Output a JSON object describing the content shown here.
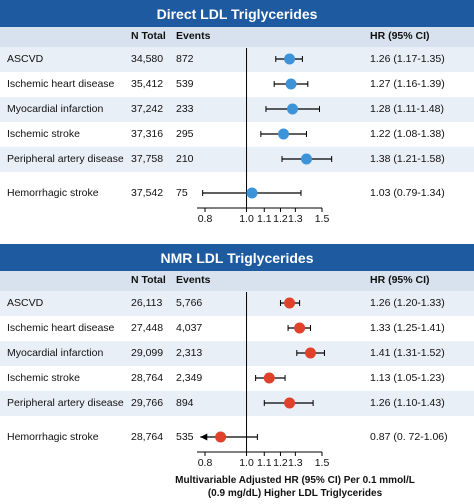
{
  "colors": {
    "header_bg": "#1e5aa0",
    "colheader_bg": "#d7e2ee",
    "row_shade": "#e9eff6",
    "direct_marker": "#3d93d8",
    "nmr_marker": "#e0412b"
  },
  "panels": [
    {
      "title": "Direct LDL Triglycerides",
      "col_headers": {
        "n": "N Total",
        "events": "Events",
        "hr": "HR (95% CI)"
      },
      "rows": [
        {
          "label": "ASCVD",
          "n": "34,580",
          "events": "872",
          "hr_text": "1.26 (1.17-1.35)"
        },
        {
          "label": "Ischemic heart disease",
          "n": "35,412",
          "events": "539",
          "hr_text": "1.27 (1.16-1.39)"
        },
        {
          "label": "Myocardial infarction",
          "n": "37,242",
          "events": "233",
          "hr_text": "1.28 (1.11-1.48)"
        },
        {
          "label": "Ischemic stroke",
          "n": "37,316",
          "events": "295",
          "hr_text": "1.22 (1.08-1.38)"
        },
        {
          "label": "Peripheral artery disease",
          "n": "37,758",
          "events": "210",
          "hr_text": "1.38 (1.21-1.58)"
        },
        {
          "label": "Hemorrhagic stroke",
          "n": "37,542",
          "events": "75",
          "hr_text": "1.03 (0.79-1.34)"
        }
      ]
    },
    {
      "title": "NMR LDL Triglycerides",
      "col_headers": {
        "n": "N Total",
        "events": "Events",
        "hr": "HR (95% CI)"
      },
      "rows": [
        {
          "label": "ASCVD",
          "n": "26,113",
          "events": "5,766",
          "hr_text": "1.26 (1.20-1.33)"
        },
        {
          "label": "Ischemic heart disease",
          "n": "27,448",
          "events": "4,037",
          "hr_text": "1.33 (1.25-1.41)"
        },
        {
          "label": "Myocardial infarction",
          "n": "29,099",
          "events": "2,313",
          "hr_text": "1.41 (1.31-1.52)"
        },
        {
          "label": "Ischemic stroke",
          "n": "28,764",
          "events": "2,349",
          "hr_text": "1.13 (1.05-1.23)"
        },
        {
          "label": "Peripheral artery disease",
          "n": "29,766",
          "events": "894",
          "hr_text": "1.26 (1.10-1.43)"
        },
        {
          "label": "Hemorrhagic stroke",
          "n": "28,764",
          "events": "535",
          "hr_text": "0.87 (0. 72-1.06)"
        }
      ]
    }
  ],
  "x_axis": {
    "label_line1": "Multivariable Adjusted HR (95% CI) Per 0.1 mmol/L",
    "label_line2": "(0.9 mg/dL) Higher LDL Triglycerides",
    "ticks": [
      "0.8",
      "1.0",
      "1.1",
      "1.2",
      "1.3",
      "1.5"
    ]
  },
  "chart_data": [
    {
      "type": "forest",
      "title": "Direct LDL Triglycerides",
      "xlabel": "Multivariable Adjusted HR (95% CI) Per 0.1 mmol/L (0.9 mg/dL) Higher LDL Triglycerides",
      "x_scale": "log",
      "reference_line": 1.0,
      "x_ticks": [
        0.8,
        1.0,
        1.1,
        1.2,
        1.3,
        1.5
      ],
      "categories": [
        "ASCVD",
        "Ischemic heart disease",
        "Myocardial infarction",
        "Ischemic stroke",
        "Peripheral artery disease",
        "Hemorrhagic stroke"
      ],
      "hr": [
        1.26,
        1.27,
        1.28,
        1.22,
        1.38,
        1.03
      ],
      "ci_low": [
        1.17,
        1.16,
        1.11,
        1.08,
        1.21,
        0.79
      ],
      "ci_high": [
        1.35,
        1.39,
        1.48,
        1.38,
        1.58,
        1.34
      ]
    },
    {
      "type": "forest",
      "title": "NMR LDL Triglycerides",
      "xlabel": "Multivariable Adjusted HR (95% CI) Per 0.1 mmol/L (0.9 mg/dL) Higher LDL Triglycerides",
      "x_scale": "log",
      "reference_line": 1.0,
      "x_ticks": [
        0.8,
        1.0,
        1.1,
        1.2,
        1.3,
        1.5
      ],
      "categories": [
        "ASCVD",
        "Ischemic heart disease",
        "Myocardial infarction",
        "Ischemic stroke",
        "Peripheral artery disease",
        "Hemorrhagic stroke"
      ],
      "hr": [
        1.26,
        1.33,
        1.41,
        1.13,
        1.26,
        0.87
      ],
      "ci_low": [
        1.2,
        1.25,
        1.31,
        1.05,
        1.1,
        0.72
      ],
      "ci_high": [
        1.33,
        1.41,
        1.52,
        1.23,
        1.43,
        1.06
      ]
    }
  ]
}
